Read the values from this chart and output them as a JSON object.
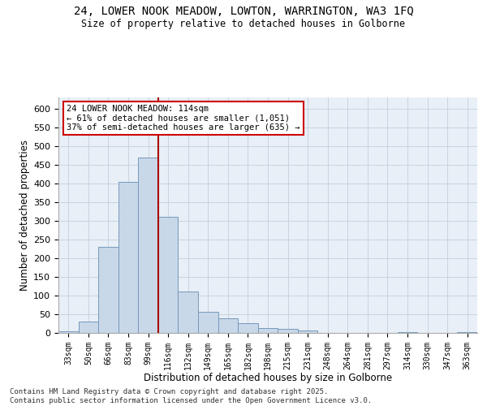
{
  "title_line1": "24, LOWER NOOK MEADOW, LOWTON, WARRINGTON, WA3 1FQ",
  "title_line2": "Size of property relative to detached houses in Golborne",
  "xlabel": "Distribution of detached houses by size in Golborne",
  "ylabel": "Number of detached properties",
  "bar_labels": [
    "33sqm",
    "50sqm",
    "66sqm",
    "83sqm",
    "99sqm",
    "116sqm",
    "132sqm",
    "149sqm",
    "165sqm",
    "182sqm",
    "198sqm",
    "215sqm",
    "231sqm",
    "248sqm",
    "264sqm",
    "281sqm",
    "297sqm",
    "314sqm",
    "330sqm",
    "347sqm",
    "363sqm"
  ],
  "bar_values": [
    5,
    30,
    230,
    405,
    470,
    310,
    110,
    57,
    40,
    25,
    14,
    11,
    6,
    0,
    0,
    0,
    0,
    3,
    0,
    0,
    3
  ],
  "bar_color": "#c8d8e8",
  "bar_edge_color": "#7799bb",
  "vline_x_index": 5,
  "vline_color": "#aa0000",
  "ylim_max": 630,
  "yticks": [
    0,
    50,
    100,
    150,
    200,
    250,
    300,
    350,
    400,
    450,
    500,
    550,
    600
  ],
  "annotation_text": "24 LOWER NOOK MEADOW: 114sqm\n← 61% of detached houses are smaller (1,051)\n37% of semi-detached houses are larger (635) →",
  "annotation_box_facecolor": "#ffffff",
  "annotation_box_edgecolor": "#cc0000",
  "grid_color": "#c8d4e0",
  "plot_bg_color": "#e8eff6",
  "footer_text": "Contains HM Land Registry data © Crown copyright and database right 2025.\nContains public sector information licensed under the Open Government Licence v3.0.",
  "fig_width": 6.0,
  "fig_height": 5.0,
  "dpi": 100
}
